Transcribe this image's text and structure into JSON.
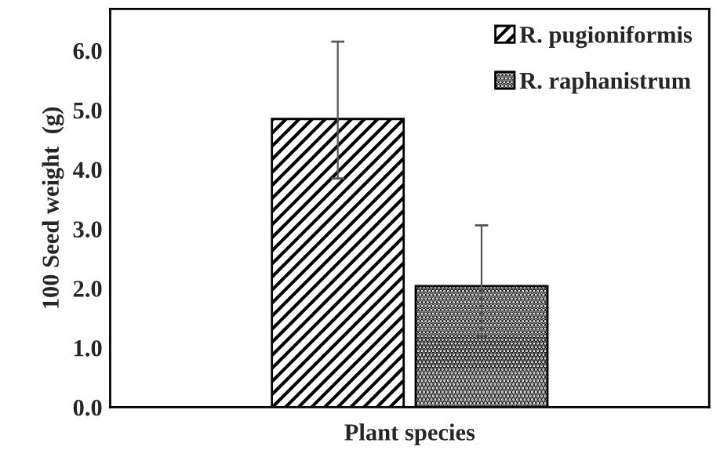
{
  "chart_data": {
    "type": "bar",
    "xlabel": "Plant species",
    "ylabel": "100 Seed weight  (g)",
    "categories": [
      null
    ],
    "series": [
      {
        "name": "R. pugioniformis",
        "color": "#000000",
        "values": [
          4.85
        ],
        "errors": [
          [
            3.85,
            6.15
          ]
        ]
      },
      {
        "name": "R. raphanistrum",
        "color": "#000000",
        "values": [
          2.04
        ],
        "errors": [
          [
            1.2,
            3.06
          ]
        ]
      }
    ],
    "ylim": [
      0,
      6.7
    ],
    "yticks": [
      {
        "value": 0,
        "label": "0.0"
      },
      {
        "value": 1,
        "label": "1.0"
      },
      {
        "value": 2,
        "label": "2.0"
      },
      {
        "value": 3,
        "label": "3.0"
      },
      {
        "value": 4,
        "label": "4.0"
      },
      {
        "value": 5,
        "label": "5.0"
      },
      {
        "value": 6,
        "label": "6.0"
      }
    ],
    "grid": false,
    "legend": "top right"
  }
}
